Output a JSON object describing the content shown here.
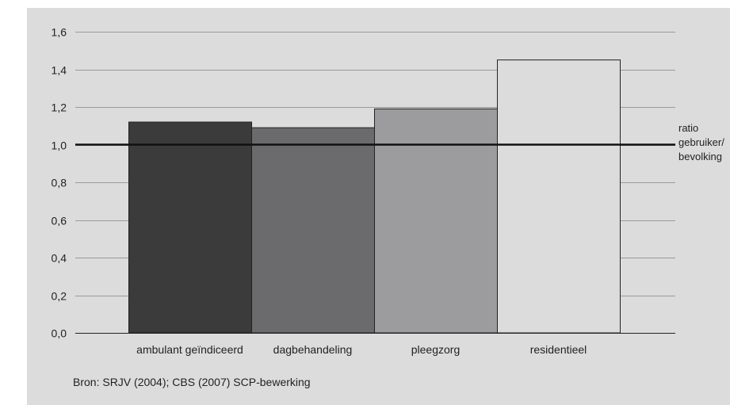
{
  "chart_data": {
    "type": "bar",
    "categories": [
      "ambulant geïndiceerd",
      "dagbehandeling",
      "pleegzorg",
      "residentieel"
    ],
    "values": [
      1.12,
      1.09,
      1.19,
      1.45
    ],
    "bar_colors": [
      "#3b3b3b",
      "#6b6b6e",
      "#9c9c9e",
      "#dcdcdc"
    ],
    "ylim": [
      0,
      1.6
    ],
    "yticks": [
      0.0,
      0.2,
      0.4,
      0.6,
      0.8,
      1.0,
      1.2,
      1.4,
      1.6
    ],
    "ytick_labels": [
      "0,0",
      "0,2",
      "0,4",
      "0,6",
      "0,8",
      "1,0",
      "1,2",
      "1,4",
      "1,6"
    ],
    "reference_line": {
      "value": 1.0,
      "label": [
        "ratio",
        "gebruiker/",
        "bevolking"
      ]
    },
    "grid": "horizontal"
  },
  "source_note": "Bron: SRJV (2004); CBS (2007) SCP-bewerking"
}
